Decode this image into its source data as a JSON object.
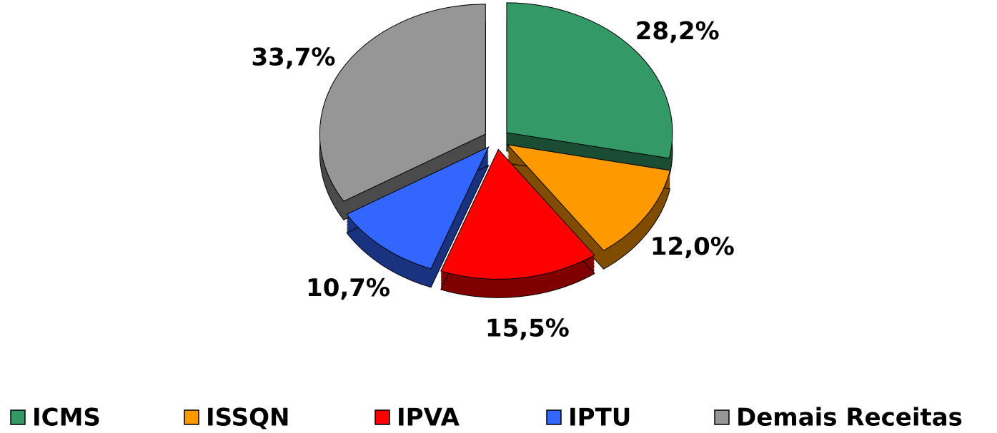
{
  "chart_data": {
    "type": "pie",
    "categories": [
      "ICMS",
      "ISSQN",
      "IPVA",
      "IPTU",
      "Demais Receitas"
    ],
    "values": [
      28.2,
      12.0,
      15.5,
      10.7,
      33.7
    ],
    "value_labels": [
      "28,2%",
      "12,0%",
      "15,5%",
      "10,7%",
      "33,7%"
    ],
    "colors": [
      "#339966",
      "#ff9900",
      "#ff0000",
      "#3366ff",
      "#969696"
    ],
    "legend": "bottom"
  }
}
